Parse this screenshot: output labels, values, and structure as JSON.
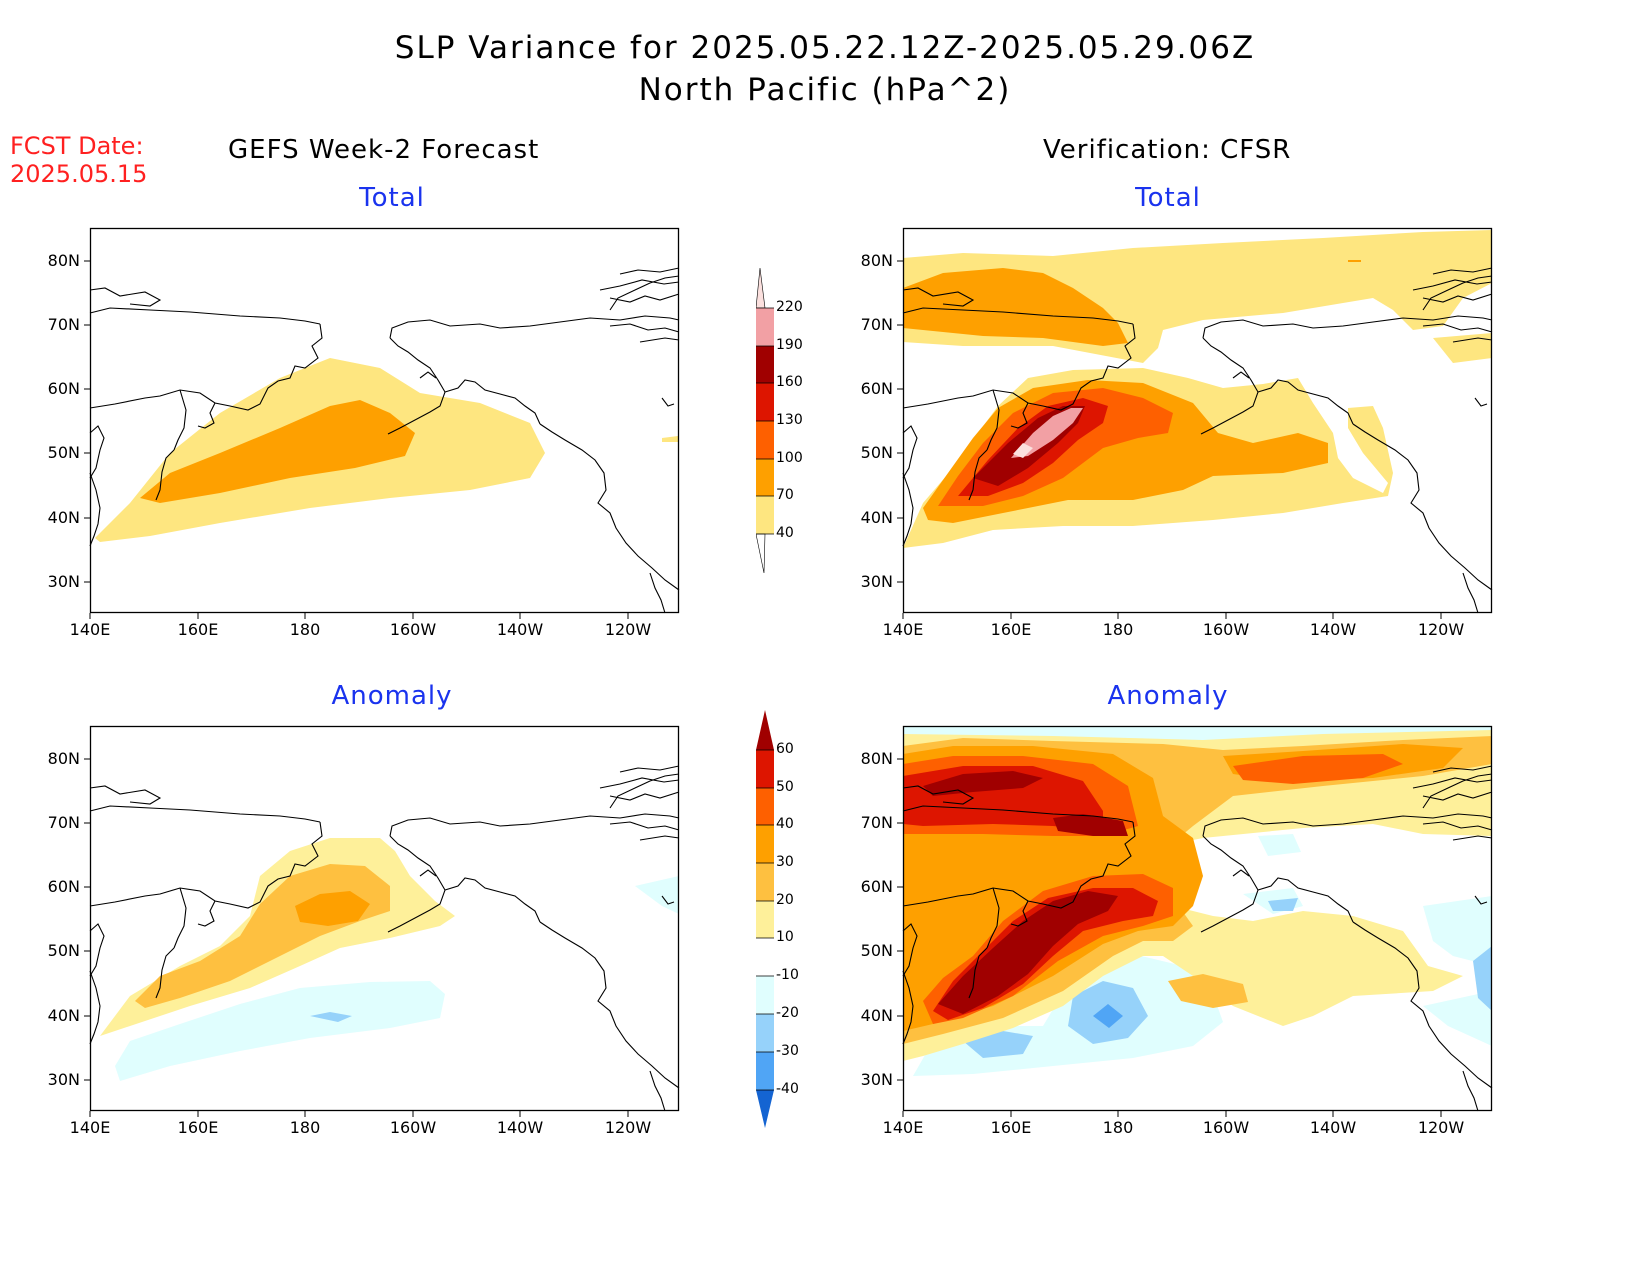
{
  "header": {
    "title_line1": "SLP Variance for 2025.05.22.12Z-2025.05.29.06Z",
    "title_line2": "North Pacific (hPa^2)"
  },
  "fcst": {
    "line1": "FCST Date:",
    "line2": "2025.05.15"
  },
  "columns": {
    "left": "GEFS Week-2 Forecast",
    "right": "Verification: CFSR"
  },
  "panel_titles": {
    "total": "Total",
    "anomaly": "Anomaly"
  },
  "axes": {
    "lat_labels": [
      "80N",
      "70N",
      "60N",
      "50N",
      "40N",
      "30N"
    ],
    "lon_labels": [
      "140E",
      "160E",
      "180",
      "160W",
      "140W",
      "120W"
    ]
  },
  "colorbars": {
    "total": {
      "labels": [
        "220",
        "190",
        "160",
        "130",
        "100",
        "70",
        "40"
      ],
      "colors": [
        "#fbe0de",
        "#f2a0a4",
        "#a00000",
        "#dd1500",
        "#fe6000",
        "#fea000",
        "#fee680"
      ]
    },
    "anomaly": {
      "labels": [
        "60",
        "50",
        "40",
        "30",
        "20",
        "10",
        "-10",
        "-20",
        "-30",
        "-40"
      ],
      "colors_pos": [
        "#a00000",
        "#dd1500",
        "#fe6000",
        "#fea000",
        "#fec040",
        "#fef09a"
      ],
      "white": "#ffffff",
      "colors_neg": [
        "#e0fefe",
        "#96d2fa",
        "#50a5f5",
        "#1e6ee6",
        "#1464d2"
      ]
    }
  }
}
